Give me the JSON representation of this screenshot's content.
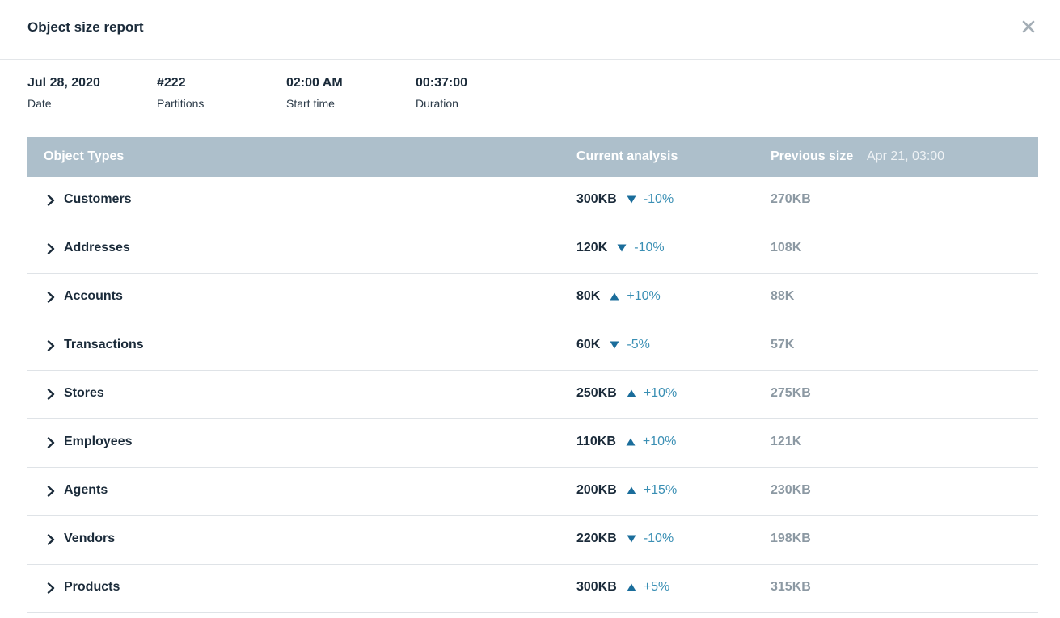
{
  "dialog": {
    "title": "Object size report",
    "close_icon": "close-icon"
  },
  "meta": [
    {
      "value": "Jul 28, 2020",
      "label": "Date"
    },
    {
      "value": "#222",
      "label": "Partitions"
    },
    {
      "value": "02:00 AM",
      "label": "Start time"
    },
    {
      "value": "00:37:00",
      "label": "Duration"
    }
  ],
  "table": {
    "headers": {
      "type": "Object Types",
      "current": "Current analysis",
      "previous": "Previous size",
      "previous_date": "Apr 21, 03:00"
    },
    "rows": [
      {
        "name": "Customers",
        "current": "300KB",
        "direction": "down",
        "delta": "-10%",
        "previous": "270KB"
      },
      {
        "name": "Addresses",
        "current": "120K",
        "direction": "down",
        "delta": "-10%",
        "previous": "108K"
      },
      {
        "name": "Accounts",
        "current": "80K",
        "direction": "up",
        "delta": "+10%",
        "previous": "88K"
      },
      {
        "name": "Transactions",
        "current": "60K",
        "direction": "down",
        "delta": "-5%",
        "previous": "57K"
      },
      {
        "name": "Stores",
        "current": "250KB",
        "direction": "up",
        "delta": "+10%",
        "previous": "275KB"
      },
      {
        "name": "Employees",
        "current": "110KB",
        "direction": "up",
        "delta": "+10%",
        "previous": "121K"
      },
      {
        "name": "Agents",
        "current": "200KB",
        "direction": "up",
        "delta": "+15%",
        "previous": "230KB"
      },
      {
        "name": "Vendors",
        "current": "220KB",
        "direction": "down",
        "delta": "-10%",
        "previous": "198KB"
      },
      {
        "name": "Products",
        "current": "300KB",
        "direction": "up",
        "delta": "+5%",
        "previous": "315KB"
      }
    ]
  },
  "colors": {
    "header_bg": "#adbfcb",
    "arrow": "#1a6d9b",
    "delta_text": "#3a8fb4",
    "previous_text": "#8c99a3"
  }
}
